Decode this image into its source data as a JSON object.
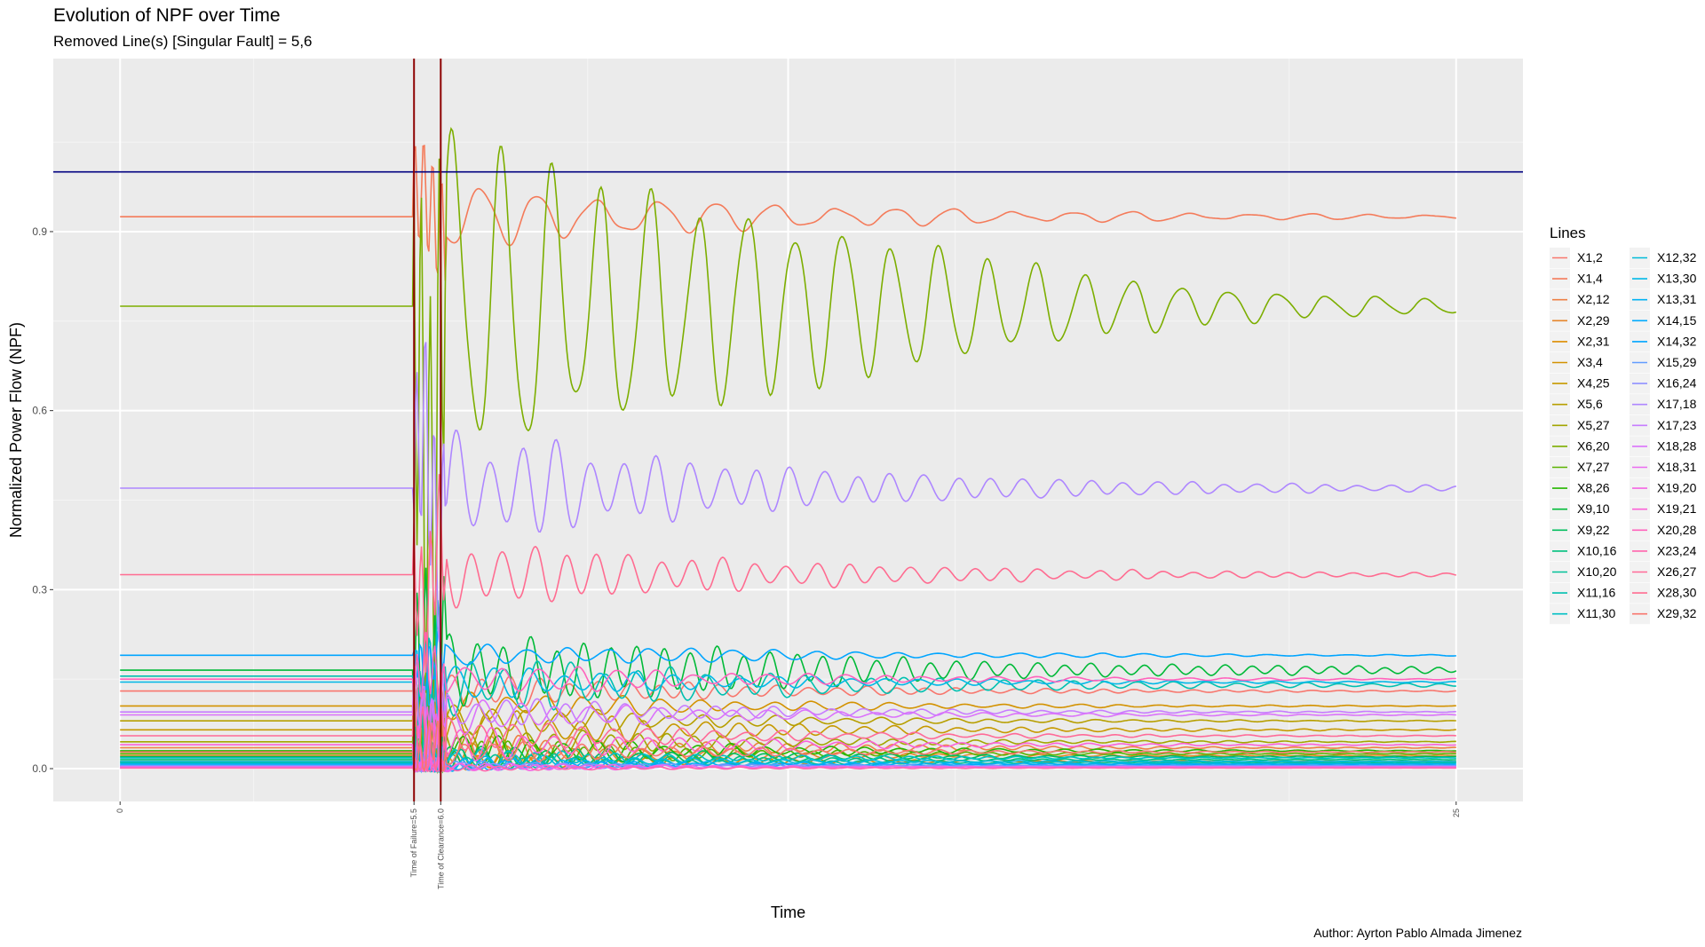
{
  "page": {
    "title": "Evolution of NPF over Time",
    "subtitle": "Removed Line(s) [Singular Fault] = 5,6",
    "caption": "Author: Ayrton Pablo Almada Jimenez"
  },
  "chart_data": {
    "type": "line",
    "title": "Evolution of NPF over Time",
    "subtitle": "Removed Line(s) [Singular Fault] = 5,6",
    "xlabel": "Time",
    "ylabel": "Normalized Power Flow (NPF)",
    "xlim": [
      -1.25,
      26.25
    ],
    "ylim": [
      -0.055,
      1.19
    ],
    "x_tick_labels": [
      {
        "x": 0,
        "label": "0"
      },
      {
        "x": 5.5,
        "label": "Time of Failure=5.5"
      },
      {
        "x": 6.0,
        "label": "Time of Clearance=6.0"
      },
      {
        "x": 25,
        "label": "25"
      }
    ],
    "y_ticks": [
      0.0,
      0.3,
      0.6,
      0.9
    ],
    "y_tick_labels": [
      "0.0",
      "0.3",
      "0.6",
      "0.9"
    ],
    "grid": true,
    "panel_background": "#ebebeb",
    "failure_time": 5.5,
    "clearance_time": 6.0,
    "vline_color": "#8b0000",
    "reference_line": {
      "y": 1.0,
      "color": "#000080"
    },
    "legend_title": "Lines",
    "legend_position": "right",
    "series": [
      {
        "name": "X1,2",
        "color": "#F8766D",
        "pre": 0.13,
        "post": 0.13,
        "amp": 0.02,
        "freq": 1.8,
        "decay": 0.18
      },
      {
        "name": "X1,4",
        "color": "#F47B5A",
        "pre": 0.925,
        "post": 0.925,
        "amp": 0.035,
        "freq": 0.9,
        "decay": 0.15,
        "peak": 1.015
      },
      {
        "name": "X2,12",
        "color": "#EE8044",
        "pre": 0.035,
        "post": 0.035,
        "amp": 0.02,
        "freq": 2.0,
        "decay": 0.2
      },
      {
        "name": "X2,29",
        "color": "#E6852A",
        "pre": 0.022,
        "post": 0.022,
        "amp": 0.015,
        "freq": 1.6,
        "decay": 0.2
      },
      {
        "name": "X2,31",
        "color": "#DE8C00",
        "pre": 0.012,
        "post": 0.012,
        "amp": 0.012,
        "freq": 2.2,
        "decay": 0.22
      },
      {
        "name": "X3,4",
        "color": "#D39200",
        "pre": 0.105,
        "post": 0.105,
        "amp": 0.02,
        "freq": 1.4,
        "decay": 0.2
      },
      {
        "name": "X4,25",
        "color": "#C69900",
        "pre": 0.065,
        "post": 0.065,
        "amp": 0.025,
        "freq": 1.7,
        "decay": 0.2
      },
      {
        "name": "X5,6",
        "color": "#B79F00",
        "pre": 0.08,
        "post": 0.08,
        "amp": 0.02,
        "freq": 1.5,
        "decay": 0.2
      },
      {
        "name": "X5,27",
        "color": "#A3A500",
        "pre": 0.045,
        "post": 0.045,
        "amp": 0.02,
        "freq": 1.9,
        "decay": 0.2
      },
      {
        "name": "X6,20",
        "color": "#7CAE00",
        "pre": 0.775,
        "post": 0.775,
        "amp": 0.28,
        "freq": 1.1,
        "decay": 0.17,
        "peak": 1.135
      },
      {
        "name": "X7,27",
        "color": "#5BB300",
        "pre": 0.025,
        "post": 0.025,
        "amp": 0.02,
        "freq": 2.1,
        "decay": 0.22
      },
      {
        "name": "X8,26",
        "color": "#24B700",
        "pre": 0.03,
        "post": 0.03,
        "amp": 0.02,
        "freq": 1.6,
        "decay": 0.2
      },
      {
        "name": "X9,10",
        "color": "#00BA38",
        "pre": 0.165,
        "post": 0.165,
        "amp": 0.045,
        "freq": 2.0,
        "decay": 0.14,
        "peak": 0.3
      },
      {
        "name": "X9,22",
        "color": "#00BD5C",
        "pre": 0.02,
        "post": 0.02,
        "amp": 0.015,
        "freq": 1.7,
        "decay": 0.2
      },
      {
        "name": "X10,16",
        "color": "#00BF7D",
        "pre": 0.015,
        "post": 0.015,
        "amp": 0.012,
        "freq": 2.3,
        "decay": 0.22
      },
      {
        "name": "X10,20",
        "color": "#00C098",
        "pre": 0.01,
        "post": 0.01,
        "amp": 0.01,
        "freq": 1.9,
        "decay": 0.22
      },
      {
        "name": "X11,16",
        "color": "#00C0B0",
        "pre": 0.155,
        "post": 0.14,
        "amp": 0.035,
        "freq": 1.6,
        "decay": 0.16
      },
      {
        "name": "X11,30",
        "color": "#00BFC4",
        "pre": 0.018,
        "post": 0.018,
        "amp": 0.012,
        "freq": 2.0,
        "decay": 0.2
      },
      {
        "name": "X12,32",
        "color": "#00BCD8",
        "pre": 0.012,
        "post": 0.012,
        "amp": 0.01,
        "freq": 1.8,
        "decay": 0.22
      },
      {
        "name": "X13,30",
        "color": "#00B8E7",
        "pre": 0.145,
        "post": 0.145,
        "amp": 0.02,
        "freq": 1.5,
        "decay": 0.18
      },
      {
        "name": "X13,31",
        "color": "#00B2F3",
        "pre": 0.008,
        "post": 0.008,
        "amp": 0.008,
        "freq": 2.2,
        "decay": 0.22
      },
      {
        "name": "X14,15",
        "color": "#00ABFD",
        "pre": 0.006,
        "post": 0.006,
        "amp": 0.006,
        "freq": 1.7,
        "decay": 0.22
      },
      {
        "name": "X14,32",
        "color": "#00A5FF",
        "pre": 0.19,
        "post": 0.19,
        "amp": 0.015,
        "freq": 1.3,
        "decay": 0.16
      },
      {
        "name": "X15,29",
        "color": "#619CFF",
        "pre": 0.005,
        "post": 0.005,
        "amp": 0.006,
        "freq": 2.0,
        "decay": 0.22
      },
      {
        "name": "X16,24",
        "color": "#8F91FF",
        "pre": 0.004,
        "post": 0.004,
        "amp": 0.005,
        "freq": 1.6,
        "decay": 0.22
      },
      {
        "name": "X17,18",
        "color": "#AE87FF",
        "pre": 0.47,
        "post": 0.47,
        "amp": 0.065,
        "freq": 1.6,
        "decay": 0.16
      },
      {
        "name": "X17,23",
        "color": "#C77CFF",
        "pre": 0.095,
        "post": 0.095,
        "amp": 0.02,
        "freq": 1.8,
        "decay": 0.2
      },
      {
        "name": "X18,28",
        "color": "#DB72FB",
        "pre": 0.09,
        "post": 0.09,
        "amp": 0.02,
        "freq": 1.5,
        "decay": 0.2
      },
      {
        "name": "X18,31",
        "color": "#EB6AEF",
        "pre": 0.003,
        "post": 0.003,
        "amp": 0.005,
        "freq": 2.1,
        "decay": 0.22
      },
      {
        "name": "X19,20",
        "color": "#F564E3",
        "pre": 0.002,
        "post": 0.002,
        "amp": 0.005,
        "freq": 1.9,
        "decay": 0.22
      },
      {
        "name": "X19,21",
        "color": "#FB61D7",
        "pre": 0.04,
        "post": 0.04,
        "amp": 0.02,
        "freq": 1.7,
        "decay": 0.2
      },
      {
        "name": "X20,28",
        "color": "#FF62BC",
        "pre": 0.15,
        "post": 0.15,
        "amp": 0.02,
        "freq": 1.4,
        "decay": 0.18
      },
      {
        "name": "X23,24",
        "color": "#FF65AC",
        "pre": 0.001,
        "post": 0.001,
        "amp": 0.004,
        "freq": 2.0,
        "decay": 0.22
      },
      {
        "name": "X26,27",
        "color": "#FF6A98",
        "pre": 0.055,
        "post": 0.055,
        "amp": 0.02,
        "freq": 1.6,
        "decay": 0.2
      },
      {
        "name": "X28,30",
        "color": "#FF6C91",
        "pre": 0.325,
        "post": 0.325,
        "amp": 0.04,
        "freq": 1.7,
        "decay": 0.16
      },
      {
        "name": "X29,32",
        "color": "#F8766D",
        "pre": 0.028,
        "post": 0.028,
        "amp": 0.015,
        "freq": 1.8,
        "decay": 0.2
      }
    ]
  }
}
